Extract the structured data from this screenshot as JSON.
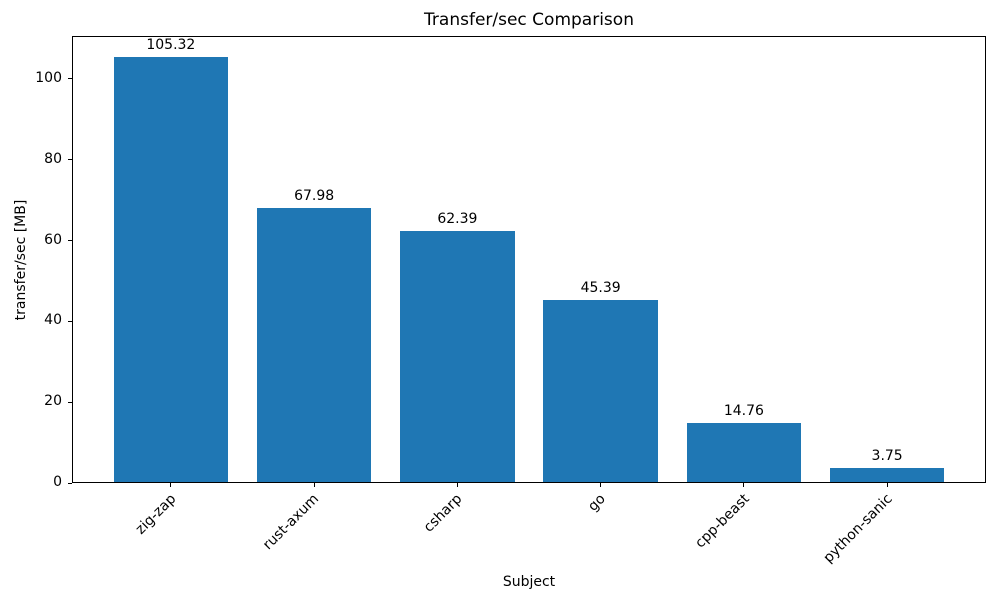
{
  "chart_data": {
    "type": "bar",
    "title": "Transfer/sec Comparison",
    "xlabel": "Subject",
    "ylabel": "transfer/sec [MB]",
    "categories": [
      "zig-zap",
      "rust-axum",
      "csharp",
      "go",
      "cpp-beast",
      "python-sanic"
    ],
    "values": [
      105.32,
      67.98,
      62.39,
      45.39,
      14.76,
      3.75
    ],
    "value_labels": [
      "105.32",
      "67.98",
      "62.39",
      "45.39",
      "14.76",
      "3.75"
    ],
    "yticks": [
      0,
      20,
      40,
      60,
      80,
      100
    ],
    "ylim": [
      0,
      110.6
    ],
    "bar_color": "#1f77b4",
    "text_color": "#000000",
    "grid": false,
    "legend": null,
    "bar_width_fraction": 0.8,
    "x_tick_rotation_deg": 45
  }
}
